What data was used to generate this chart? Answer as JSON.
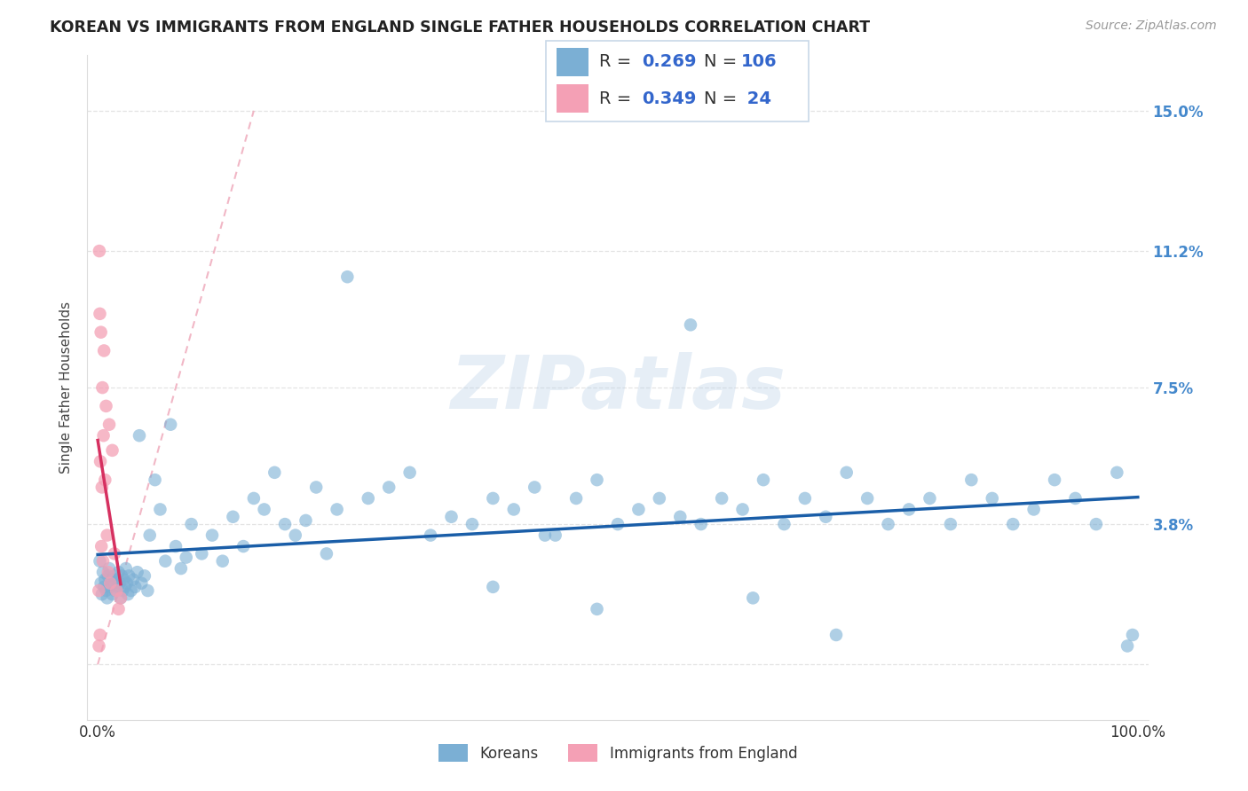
{
  "title": "KOREAN VS IMMIGRANTS FROM ENGLAND SINGLE FATHER HOUSEHOLDS CORRELATION CHART",
  "source": "Source: ZipAtlas.com",
  "ylabel": "Single Father Households",
  "xlim_low": -1,
  "xlim_high": 101,
  "ylim_low": -1.5,
  "ylim_high": 16.5,
  "ytick_vals": [
    0,
    3.8,
    7.5,
    11.2,
    15.0
  ],
  "ytick_labels": [
    "",
    "3.8%",
    "7.5%",
    "11.2%",
    "15.0%"
  ],
  "xtick_vals": [
    0,
    100
  ],
  "xtick_labels": [
    "0.0%",
    "100.0%"
  ],
  "korean_R": 0.269,
  "korean_N": 106,
  "england_R": 0.349,
  "england_N": 24,
  "korean_dot_color": "#7BAFD4",
  "england_dot_color": "#F4A0B5",
  "korean_line_color": "#1A5EA8",
  "england_line_color": "#D63060",
  "diag_line_color": "#F0B0C0",
  "grid_color": "#DDDDDD",
  "watermark_text": "ZIPatlas",
  "watermark_color": "#B8D0E8",
  "watermark_alpha": 0.35,
  "title_color": "#222222",
  "source_color": "#999999",
  "ylabel_color": "#444444",
  "tick_color": "#333333",
  "right_tick_color": "#4488CC",
  "legend_border_color": "#C8D8E8",
  "legend_text_color": "#333333",
  "legend_value_color": "#3366CC",
  "bottom_legend_color": "#333333",
  "korean_x": [
    0.2,
    0.3,
    0.4,
    0.5,
    0.6,
    0.7,
    0.8,
    0.9,
    1.0,
    1.1,
    1.2,
    1.3,
    1.4,
    1.5,
    1.6,
    1.7,
    1.8,
    1.9,
    2.0,
    2.1,
    2.2,
    2.3,
    2.4,
    2.5,
    2.6,
    2.7,
    2.8,
    2.9,
    3.0,
    3.2,
    3.4,
    3.6,
    3.8,
    4.0,
    4.2,
    4.5,
    4.8,
    5.0,
    5.5,
    6.0,
    6.5,
    7.0,
    7.5,
    8.0,
    8.5,
    9.0,
    10.0,
    11.0,
    12.0,
    13.0,
    14.0,
    15.0,
    16.0,
    17.0,
    18.0,
    19.0,
    20.0,
    21.0,
    22.0,
    23.0,
    24.0,
    26.0,
    28.0,
    30.0,
    32.0,
    34.0,
    36.0,
    38.0,
    40.0,
    42.0,
    44.0,
    46.0,
    48.0,
    50.0,
    52.0,
    54.0,
    56.0,
    58.0,
    60.0,
    62.0,
    64.0,
    66.0,
    68.0,
    70.0,
    72.0,
    74.0,
    76.0,
    78.0,
    80.0,
    82.0,
    84.0,
    86.0,
    88.0,
    90.0,
    92.0,
    94.0,
    96.0,
    98.0,
    99.0,
    99.5,
    43.0,
    57.0,
    38.0,
    48.0,
    63.0,
    71.0
  ],
  "korean_y": [
    2.8,
    2.2,
    1.9,
    2.5,
    2.1,
    2.3,
    2.0,
    1.8,
    2.4,
    2.6,
    2.1,
    2.3,
    1.9,
    2.2,
    2.4,
    2.0,
    2.3,
    2.1,
    2.5,
    2.2,
    1.8,
    2.4,
    2.0,
    2.3,
    2.1,
    2.6,
    2.2,
    1.9,
    2.4,
    2.0,
    2.3,
    2.1,
    2.5,
    6.2,
    2.2,
    2.4,
    2.0,
    3.5,
    5.0,
    4.2,
    2.8,
    6.5,
    3.2,
    2.6,
    2.9,
    3.8,
    3.0,
    3.5,
    2.8,
    4.0,
    3.2,
    4.5,
    4.2,
    5.2,
    3.8,
    3.5,
    3.9,
    4.8,
    3.0,
    4.2,
    10.5,
    4.5,
    4.8,
    5.2,
    3.5,
    4.0,
    3.8,
    4.5,
    4.2,
    4.8,
    3.5,
    4.5,
    5.0,
    3.8,
    4.2,
    4.5,
    4.0,
    3.8,
    4.5,
    4.2,
    5.0,
    3.8,
    4.5,
    4.0,
    5.2,
    4.5,
    3.8,
    4.2,
    4.5,
    3.8,
    5.0,
    4.5,
    3.8,
    4.2,
    5.0,
    4.5,
    3.8,
    5.2,
    0.5,
    0.8,
    3.5,
    9.2,
    2.1,
    1.5,
    1.8,
    0.8
  ],
  "england_x": [
    0.1,
    0.15,
    0.2,
    0.25,
    0.3,
    0.35,
    0.4,
    0.45,
    0.5,
    0.55,
    0.6,
    0.7,
    0.8,
    0.9,
    1.0,
    1.1,
    1.2,
    1.4,
    1.6,
    1.8,
    2.0,
    2.2,
    0.12,
    0.22
  ],
  "england_y": [
    2.0,
    11.2,
    9.5,
    5.5,
    9.0,
    3.2,
    4.8,
    7.5,
    2.8,
    6.2,
    8.5,
    5.0,
    7.0,
    3.5,
    2.5,
    6.5,
    2.2,
    5.8,
    3.0,
    2.0,
    1.5,
    1.8,
    0.5,
    0.8
  ]
}
